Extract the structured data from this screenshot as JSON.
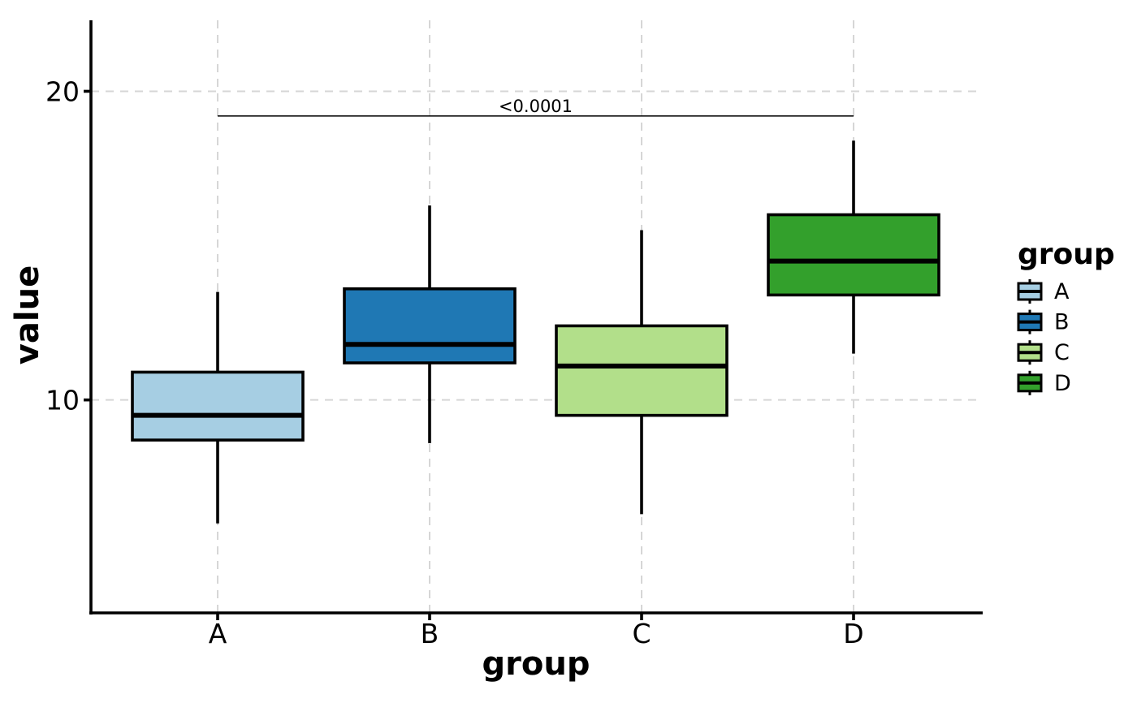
{
  "chart_data": {
    "type": "boxplot",
    "title": "",
    "xlabel": "group",
    "ylabel": "value",
    "categories": [
      "A",
      "B",
      "C",
      "D"
    ],
    "y_ticks": [
      10,
      20
    ],
    "ylim": [
      3.1,
      22.3
    ],
    "grid": {
      "show": true,
      "style": "dashed",
      "color": "#d6d6d6"
    },
    "axis_color": "#000000",
    "series": [
      {
        "name": "A",
        "color": "#a6cee3",
        "whisker_low": 6.0,
        "q1": 8.7,
        "median": 9.5,
        "q3": 10.9,
        "whisker_high": 13.5
      },
      {
        "name": "B",
        "color": "#1f78b4",
        "whisker_low": 8.6,
        "q1": 11.2,
        "median": 11.8,
        "q3": 13.6,
        "whisker_high": 16.3
      },
      {
        "name": "C",
        "color": "#b2df8a",
        "whisker_low": 6.3,
        "q1": 9.5,
        "median": 11.1,
        "q3": 12.4,
        "whisker_high": 15.5
      },
      {
        "name": "D",
        "color": "#33a02c",
        "whisker_low": 11.5,
        "q1": 13.4,
        "median": 14.5,
        "q3": 16.0,
        "whisker_high": 18.4
      }
    ],
    "annotation": {
      "text": "<0.0001",
      "from_category": "A",
      "to_category": "D",
      "y_value": 19.2
    },
    "legend": {
      "title": "group",
      "position": "right",
      "entries": [
        {
          "label": "A",
          "color": "#a6cee3"
        },
        {
          "label": "B",
          "color": "#1f78b4"
        },
        {
          "label": "C",
          "color": "#b2df8a"
        },
        {
          "label": "D",
          "color": "#33a02c"
        }
      ]
    }
  }
}
